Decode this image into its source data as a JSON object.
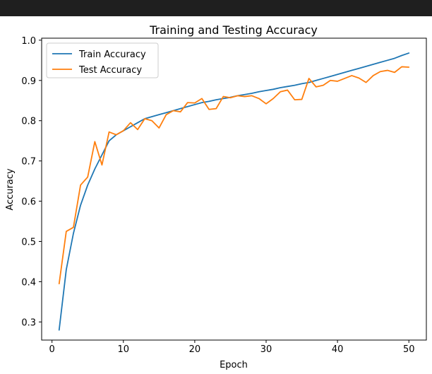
{
  "window": {
    "title_bar": ""
  },
  "chart_data": {
    "type": "line",
    "title": "Training and Testing Accuracy",
    "xlabel": "Epoch",
    "ylabel": "Accuracy",
    "xlim": [
      -1.45,
      52.45
    ],
    "ylim": [
      0.255,
      1.005
    ],
    "xticks": [
      0,
      10,
      20,
      30,
      40,
      50
    ],
    "yticks": [
      0.3,
      0.4,
      0.5,
      0.6,
      0.7,
      0.8,
      0.9,
      1.0
    ],
    "ytick_labels": [
      "0.3",
      "0.4",
      "0.5",
      "0.6",
      "0.7",
      "0.8",
      "0.9",
      "1.0"
    ],
    "xtick_labels": [
      "0",
      "10",
      "20",
      "30",
      "40",
      "50"
    ],
    "grid": false,
    "legend_position": "upper left",
    "x": [
      1,
      2,
      3,
      4,
      5,
      6,
      7,
      8,
      9,
      10,
      11,
      12,
      13,
      14,
      15,
      16,
      17,
      18,
      19,
      20,
      21,
      22,
      23,
      24,
      25,
      26,
      27,
      28,
      29,
      30,
      31,
      32,
      33,
      34,
      35,
      36,
      37,
      38,
      39,
      40,
      41,
      42,
      43,
      44,
      45,
      46,
      47,
      48,
      49,
      50
    ],
    "series": [
      {
        "name": "Train Accuracy",
        "color": "#1f77b4",
        "values": [
          0.28,
          0.43,
          0.52,
          0.59,
          0.64,
          0.68,
          0.715,
          0.75,
          0.765,
          0.775,
          0.785,
          0.795,
          0.805,
          0.81,
          0.815,
          0.82,
          0.825,
          0.83,
          0.835,
          0.84,
          0.845,
          0.848,
          0.852,
          0.855,
          0.858,
          0.862,
          0.865,
          0.868,
          0.872,
          0.875,
          0.878,
          0.882,
          0.885,
          0.888,
          0.892,
          0.895,
          0.9,
          0.905,
          0.91,
          0.915,
          0.92,
          0.925,
          0.93,
          0.935,
          0.94,
          0.945,
          0.95,
          0.955,
          0.962,
          0.968
        ]
      },
      {
        "name": "Test Accuracy",
        "color": "#ff7f0e",
        "values": [
          0.395,
          0.525,
          0.535,
          0.64,
          0.66,
          0.748,
          0.69,
          0.772,
          0.765,
          0.775,
          0.795,
          0.778,
          0.805,
          0.8,
          0.782,
          0.815,
          0.825,
          0.822,
          0.845,
          0.844,
          0.855,
          0.828,
          0.83,
          0.86,
          0.857,
          0.862,
          0.86,
          0.862,
          0.855,
          0.842,
          0.855,
          0.872,
          0.876,
          0.852,
          0.853,
          0.905,
          0.884,
          0.888,
          0.9,
          0.898,
          0.905,
          0.912,
          0.906,
          0.895,
          0.912,
          0.922,
          0.925,
          0.92,
          0.934,
          0.933
        ]
      }
    ]
  }
}
